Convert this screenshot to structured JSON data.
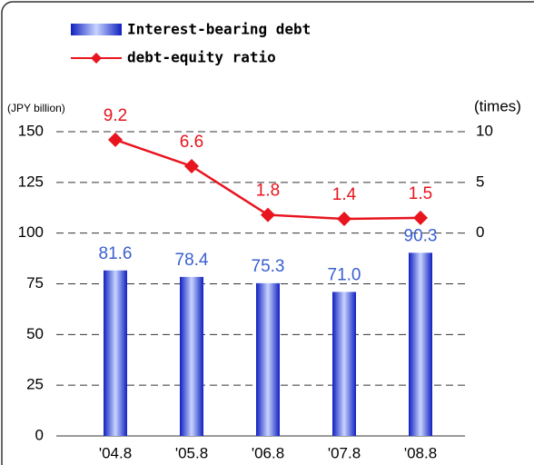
{
  "chart_data": {
    "type": "bar_line",
    "categories": [
      "'04.8",
      "'05.8",
      "'06.8",
      "'07.8",
      "'08.8"
    ],
    "series": [
      {
        "name": "Interest-bearing debt",
        "type": "bar",
        "color": "#3050e0",
        "values": [
          81.6,
          78.4,
          75.3,
          71,
          90.3
        ],
        "value_labels": [
          "81.6",
          "78.4",
          "75.3",
          "71.0",
          "90.3"
        ],
        "label_color": "#3a5fd0"
      },
      {
        "name": "debt-equity ratio",
        "type": "line",
        "axis": "y2",
        "color": "#e8141e",
        "values": [
          9.2,
          6.6,
          1.8,
          1.4,
          1.5
        ]
      }
    ],
    "ylabel": "(JPY billion)",
    "y2label": "(times)",
    "ylim": [
      0,
      150
    ],
    "yticks": [
      0,
      25,
      50,
      75,
      100,
      125,
      150
    ],
    "y2lim": [
      -20,
      10
    ],
    "y2ticks": [
      0,
      5,
      10
    ],
    "grid": true
  }
}
